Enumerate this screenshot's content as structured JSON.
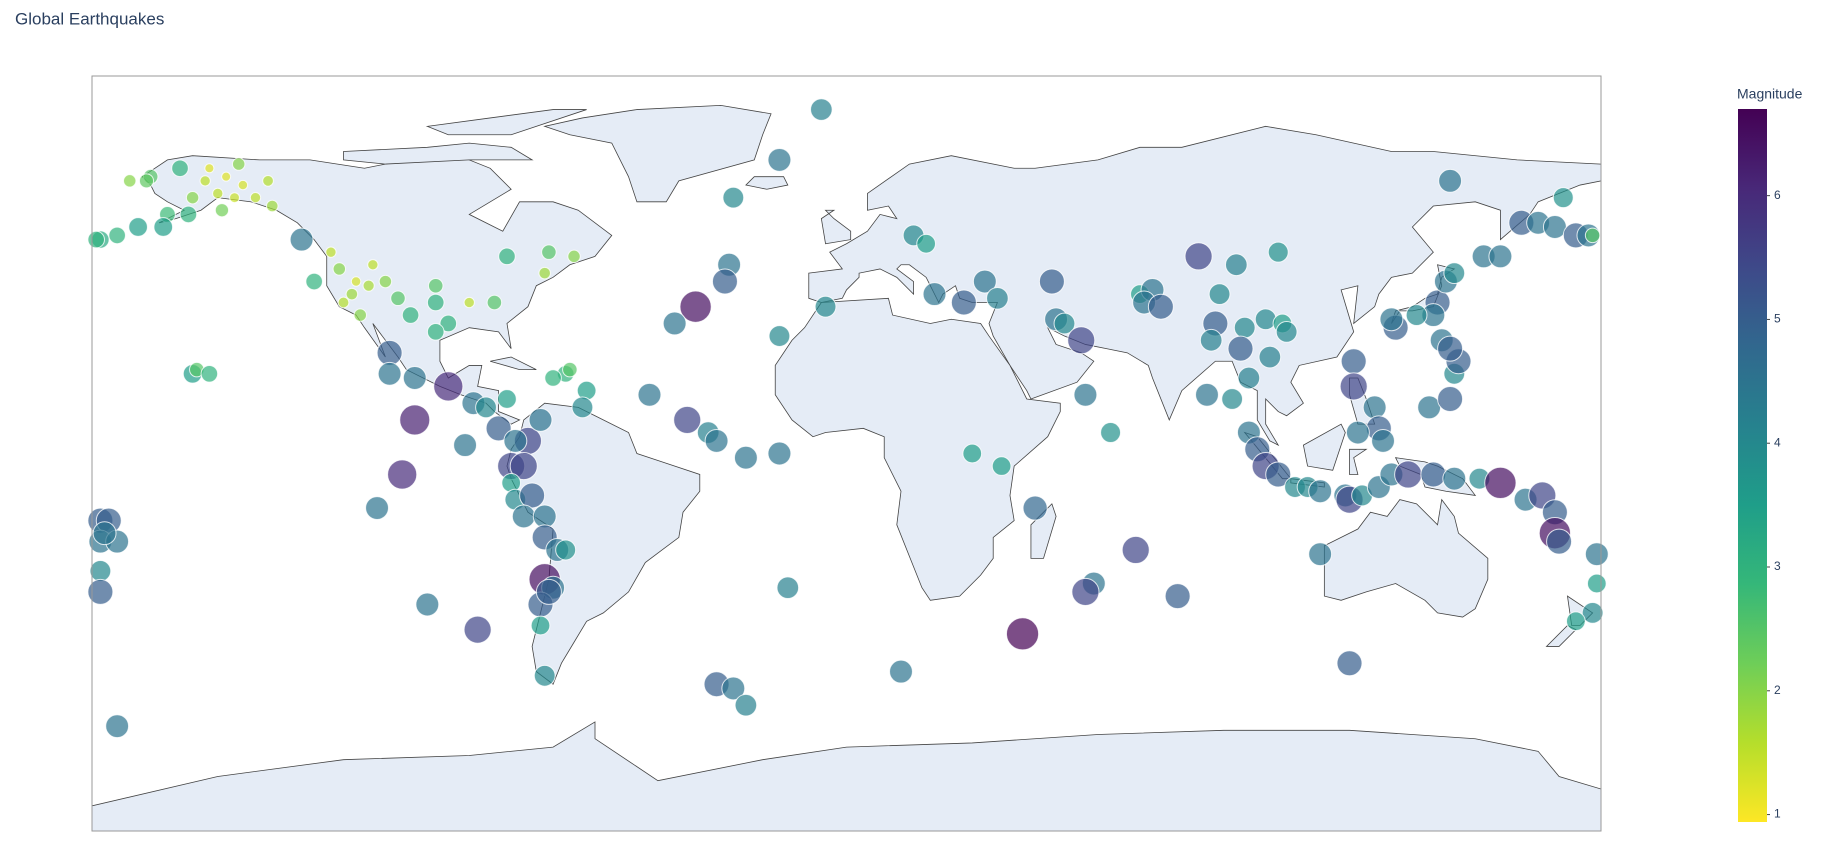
{
  "chart_data": {
    "type": "scatter_geo",
    "title": "Global Earthquakes",
    "projection": "equirectangular",
    "lonlim": [
      -180,
      180
    ],
    "latlim": [
      -90,
      90
    ],
    "opacity": 0.7,
    "colorscale": [
      "#fde725",
      "#b5de2b",
      "#6ece58",
      "#35b779",
      "#1f9e89",
      "#26828e",
      "#31688e",
      "#3e4989",
      "#482878",
      "#440154"
    ],
    "colorbar": {
      "title": "Magnitude",
      "lim": [
        0.94,
        6.7
      ],
      "ticks": [
        1,
        2,
        3,
        4,
        5,
        6
      ]
    },
    "lon": [
      -171,
      -166,
      -159,
      -153,
      -150,
      -148,
      -145,
      -144,
      -141,
      -137,
      -156,
      -149,
      -162,
      -169,
      -174,
      -178,
      -163,
      -157,
      -152,
      -146,
      -138,
      -167,
      -179,
      -130,
      -123,
      -121,
      -118,
      -116,
      -113,
      -110,
      -127,
      -107,
      -98,
      -98,
      -104,
      -95,
      -90,
      -84,
      -81,
      -71,
      -72,
      -65,
      -98,
      -117,
      -120,
      -114,
      -109,
      -109,
      -103,
      -95,
      -89,
      -86,
      -81,
      -83,
      -76,
      -79,
      -103,
      -91,
      -106,
      -112,
      -67,
      -66,
      -70,
      -62,
      -63,
      -73,
      -80,
      -77,
      -80,
      -79,
      -75,
      -77,
      -72,
      -72,
      -69,
      -67,
      -72,
      -70,
      -73,
      -71,
      -73,
      -72,
      -100,
      -88,
      -174,
      -156,
      -155,
      -152,
      -178,
      -176,
      -178,
      -174,
      -178,
      -178,
      -177,
      -6,
      -16,
      -27,
      -28,
      -29,
      -36,
      -41,
      -47,
      -38,
      -33,
      -31,
      -24,
      -16,
      -14,
      -31,
      -27,
      -24,
      13,
      -16,
      16,
      19,
      -5,
      21,
      28,
      33,
      36,
      49,
      50,
      52,
      56,
      57,
      63,
      30,
      37,
      45,
      84,
      93,
      103,
      89,
      70,
      73,
      71,
      75,
      88,
      95,
      100,
      104,
      105,
      94,
      101,
      87,
      96,
      86,
      92,
      144,
      171,
      96,
      98,
      100,
      103,
      107,
      110,
      113,
      119,
      120,
      123,
      127,
      130,
      134,
      140,
      145,
      151,
      156,
      162,
      166,
      169,
      169,
      170,
      179,
      179,
      178,
      174,
      113,
      121,
      121,
      126,
      127,
      128,
      122,
      139,
      145,
      146,
      144,
      141,
      140,
      142,
      144,
      143,
      145,
      152,
      156,
      161,
      165,
      169,
      174,
      177,
      178,
      131,
      130,
      136,
      120,
      69,
      59,
      57,
      79,
      42
    ],
    "lat": [
      65,
      66,
      68,
      65,
      62,
      66,
      69,
      64,
      61,
      59,
      61,
      58,
      57,
      54,
      52,
      51,
      54,
      57,
      68,
      61,
      65,
      65,
      51,
      51,
      48,
      44,
      38,
      33,
      45,
      41,
      41,
      37,
      36,
      40,
      33,
      31,
      36,
      36,
      47,
      48,
      43,
      47,
      29,
      41,
      36,
      40,
      24,
      19,
      18,
      16,
      12,
      11,
      13,
      6,
      3,
      3,
      8,
      2,
      -5,
      -13,
      19,
      20,
      18,
      15,
      11,
      8,
      -3,
      -3,
      -7,
      -11,
      -10,
      -15,
      -15,
      -20,
      -23,
      -23,
      -30,
      -32,
      -36,
      -33,
      -41,
      -53,
      -36,
      -42,
      -65,
      19,
      20,
      19,
      -16,
      -16,
      -21,
      -21,
      -28,
      -33,
      -19,
      82,
      70,
      61,
      45,
      41,
      35,
      31,
      14,
      8,
      5,
      3,
      -1,
      0,
      -32,
      -55,
      -56,
      -60,
      -52,
      28,
      52,
      50,
      35,
      38,
      36,
      41,
      37,
      41,
      32,
      31,
      27,
      14,
      5,
      0,
      -3,
      -13,
      47,
      45,
      48,
      38,
      38,
      39,
      36,
      35,
      31,
      30,
      32,
      31,
      29,
      25,
      23,
      27,
      18,
      14,
      13,
      65,
      61,
      5,
      1,
      -3,
      -5,
      -8,
      -8,
      -9,
      -10,
      -11,
      -10,
      -8,
      -5,
      -5,
      -5,
      -6,
      -6,
      -7,
      -11,
      -10,
      -14,
      -19,
      -21,
      -24,
      -31,
      -38,
      -40,
      -24,
      22,
      16,
      11,
      6,
      3,
      5,
      11,
      19,
      22,
      13,
      36,
      33,
      27,
      25,
      41,
      43,
      47,
      47,
      55,
      55,
      54,
      52,
      52,
      52,
      30,
      32,
      33,
      -50,
      -23,
      -31,
      -33,
      -34,
      -43
    ],
    "magnitude": [
      2,
      2.5,
      3,
      1.5,
      1.5,
      1.2,
      2,
      1.3,
      1.5,
      1.8,
      2,
      2.2,
      2.8,
      3.5,
      3,
      3.2,
      3.5,
      3,
      1.2,
      1.4,
      1.6,
      2.4,
      3,
      4.5,
      1.5,
      2,
      1.8,
      2,
      1.5,
      2,
      3,
      2.5,
      3,
      2.5,
      3,
      3,
      1.5,
      2.5,
      3,
      2.5,
      1.8,
      2,
      3,
      1.3,
      1.6,
      1.7,
      5,
      4.5,
      4.5,
      6,
      4.5,
      4,
      3.5,
      5,
      5.5,
      4.5,
      6.2,
      4.5,
      6,
      4.5,
      3,
      2.5,
      3,
      3.5,
      4,
      4.5,
      5.5,
      5.5,
      3.5,
      4,
      5,
      4.5,
      4.5,
      5,
      4.5,
      3.8,
      6.5,
      4.5,
      5,
      5,
      3.5,
      4,
      4.5,
      5.5,
      4.5,
      3.5,
      2.5,
      3,
      5,
      5,
      4.5,
      4.5,
      4,
      5,
      4.5,
      4.2,
      4.5,
      4,
      4.5,
      5,
      6.5,
      4.5,
      4.5,
      5.5,
      4.2,
      4.5,
      4.5,
      4.5,
      4.2,
      5,
      4.5,
      4.2,
      4.5,
      4,
      4,
      3.5,
      4,
      4.5,
      5,
      4.5,
      4.2,
      5,
      4.5,
      4,
      5.5,
      4.5,
      3.8,
      3.5,
      3.5,
      4.8,
      5.5,
      4.2,
      3.8,
      4,
      3.5,
      4.5,
      4.5,
      5,
      5,
      4,
      4,
      3.5,
      4,
      5,
      4.2,
      4.2,
      4.2,
      4.5,
      4,
      4.5,
      3.8,
      4.5,
      5,
      5.5,
      5,
      4,
      4,
      4.5,
      4.5,
      5.5,
      4,
      4.5,
      4.5,
      5.5,
      5,
      4.5,
      4,
      6.5,
      4.5,
      5.5,
      5,
      6.5,
      5,
      4.5,
      3.5,
      4,
      3.5,
      4.5,
      5,
      5.5,
      4.5,
      5,
      4.5,
      4.5,
      4.5,
      4,
      5,
      5,
      5,
      4.5,
      4.5,
      5,
      4.5,
      4,
      4.5,
      4.5,
      5,
      4.5,
      4.5,
      5,
      4.5,
      2.5,
      5,
      4.5,
      4,
      5,
      5.5,
      4.5,
      5.5,
      5,
      6.7
    ]
  }
}
